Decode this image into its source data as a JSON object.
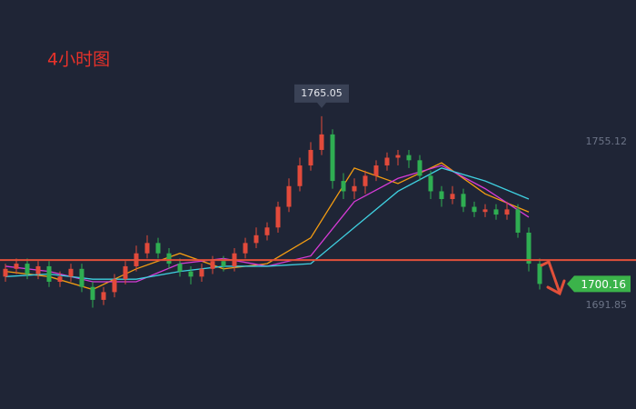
{
  "chart_data": {
    "type": "candlestick",
    "title": "4小时图",
    "open": [
      1703,
      1706,
      1708,
      1704,
      1707,
      1701,
      1703,
      1706,
      1699,
      1694,
      1697,
      1702,
      1707,
      1712,
      1716,
      1712,
      1708,
      1705,
      1703,
      1706,
      1709,
      1707,
      1712,
      1716,
      1719,
      1722,
      1730,
      1738,
      1746,
      1752,
      1758,
      1740,
      1736,
      1738,
      1742,
      1746,
      1749,
      1750,
      1748,
      1742,
      1736,
      1733,
      1735,
      1730,
      1728,
      1729,
      1727,
      1729,
      1720,
      1708
    ],
    "high": [
      1708,
      1710,
      1710,
      1709,
      1709,
      1705,
      1708,
      1708,
      1701,
      1699,
      1704,
      1709,
      1715,
      1719,
      1718,
      1714,
      1710,
      1707,
      1708,
      1711,
      1711,
      1714,
      1718,
      1722,
      1724,
      1732,
      1741,
      1749,
      1755,
      1765.05,
      1760,
      1743,
      1741,
      1744,
      1748,
      1751,
      1752,
      1752,
      1750,
      1744,
      1738,
      1738,
      1737,
      1732,
      1731,
      1731,
      1732,
      1731,
      1722,
      1710
    ],
    "low": [
      1701,
      1704,
      1702,
      1702,
      1699,
      1699,
      1701,
      1697,
      1691,
      1692,
      1695,
      1700,
      1705,
      1710,
      1710,
      1706,
      1703,
      1700,
      1701,
      1704,
      1705,
      1705,
      1710,
      1714,
      1717,
      1720,
      1728,
      1736,
      1744,
      1750,
      1737,
      1733,
      1733,
      1735,
      1740,
      1744,
      1746,
      1745,
      1740,
      1733,
      1730,
      1731,
      1728,
      1726,
      1726,
      1725,
      1725,
      1718,
      1705,
      1698
    ],
    "close": [
      1706,
      1708,
      1704,
      1707,
      1701,
      1703,
      1706,
      1699,
      1694,
      1697,
      1702,
      1707,
      1712,
      1716,
      1712,
      1708,
      1705,
      1703,
      1706,
      1709,
      1707,
      1712,
      1716,
      1719,
      1722,
      1730,
      1738,
      1746,
      1752,
      1758,
      1740,
      1736,
      1738,
      1742,
      1746,
      1749,
      1750,
      1748,
      1742,
      1736,
      1733,
      1735,
      1730,
      1728,
      1729,
      1727,
      1729,
      1720,
      1708,
      1700.16
    ],
    "up_color": "#e24a3b",
    "down_color": "#2fae52",
    "ma_x": [
      0,
      4,
      8,
      12,
      16,
      20,
      24,
      28,
      32,
      36,
      40,
      44,
      48
    ],
    "ma": [
      {
        "color": "#f39c12",
        "values": [
          1705,
          1703,
          1698,
          1706,
          1712,
          1706,
          1708,
          1718,
          1745,
          1739,
          1747,
          1735,
          1728
        ]
      },
      {
        "color": "#d63bd6",
        "values": [
          1707,
          1705,
          1701,
          1701,
          1708,
          1710,
          1707,
          1711,
          1732,
          1741,
          1746,
          1737,
          1726
        ]
      },
      {
        "color": "#3fd0e0",
        "values": [
          1703,
          1704,
          1702,
          1702,
          1705,
          1707,
          1707,
          1708,
          1722,
          1736,
          1745,
          1740,
          1733
        ]
      }
    ],
    "level": 1709.4,
    "level_color": "#e2503a",
    "ylim": [
      1651.78,
      1810.0
    ],
    "yticks": [
      1755.12,
      1691.85
    ]
  }
}
